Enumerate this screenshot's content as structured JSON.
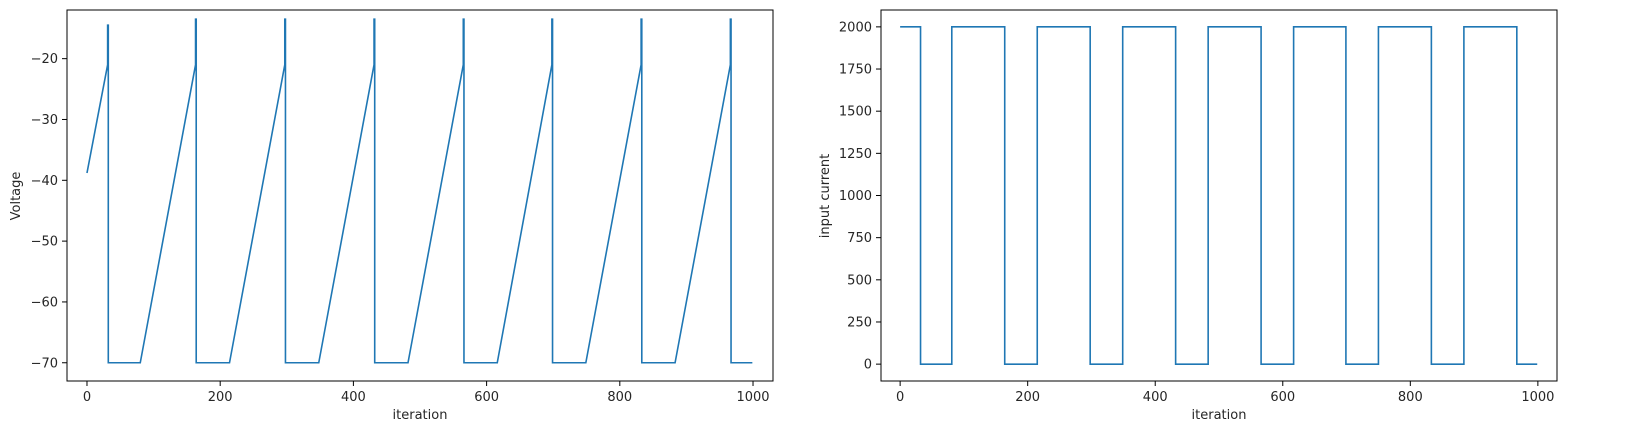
{
  "chart_data": [
    {
      "type": "line",
      "title": "",
      "xlabel": "iteration",
      "ylabel": "Voltage",
      "xlim": [
        -30,
        1030
      ],
      "ylim": [
        -73,
        -12
      ],
      "xticks": [
        0,
        200,
        400,
        600,
        800,
        1000
      ],
      "yticks": [
        -70,
        -60,
        -50,
        -40,
        -30,
        -20
      ],
      "grid": false,
      "color": "#1f77b4",
      "series": [
        {
          "x": [
            0,
            31,
            31,
            32,
            32,
            80,
            163,
            163,
            164,
            164,
            214,
            297,
            297,
            298,
            298,
            348,
            431,
            431,
            432,
            432,
            482,
            565,
            565,
            566,
            566,
            616,
            698,
            698,
            699,
            699,
            749,
            832,
            832,
            833,
            833,
            883,
            966,
            966,
            967,
            967,
            999
          ],
          "y": [
            -38.8,
            -21,
            -14.5,
            -14.5,
            -70,
            -70,
            -21,
            -13.5,
            -13.5,
            -70,
            -70,
            -21,
            -13.5,
            -13.5,
            -70,
            -70,
            -21,
            -13.5,
            -13.5,
            -70,
            -70,
            -21,
            -13.5,
            -13.5,
            -70,
            -70,
            -21,
            -13.5,
            -13.5,
            -70,
            -70,
            -21,
            -13.5,
            -13.5,
            -70,
            -70,
            -21,
            -13.5,
            -13.5,
            -70,
            -70
          ]
        }
      ]
    },
    {
      "type": "line",
      "title": "",
      "xlabel": "iteration",
      "ylabel": "input current",
      "xlim": [
        -30,
        1030
      ],
      "ylim": [
        -100,
        2100
      ],
      "xticks": [
        0,
        200,
        400,
        600,
        800,
        1000
      ],
      "yticks": [
        0,
        250,
        500,
        750,
        1000,
        1250,
        1500,
        1750,
        2000
      ],
      "grid": false,
      "color": "#1f77b4",
      "series": [
        {
          "x": [
            0,
            32,
            32,
            81,
            81,
            164,
            164,
            215,
            215,
            298,
            298,
            349,
            349,
            432,
            432,
            483,
            483,
            566,
            566,
            617,
            617,
            699,
            699,
            750,
            750,
            833,
            833,
            884,
            884,
            967,
            967,
            999
          ],
          "y": [
            2000,
            2000,
            0,
            0,
            2000,
            2000,
            0,
            0,
            2000,
            2000,
            0,
            0,
            2000,
            2000,
            0,
            0,
            2000,
            2000,
            0,
            0,
            2000,
            2000,
            0,
            0,
            2000,
            2000,
            0,
            0,
            2000,
            2000,
            0,
            0
          ]
        }
      ]
    }
  ]
}
